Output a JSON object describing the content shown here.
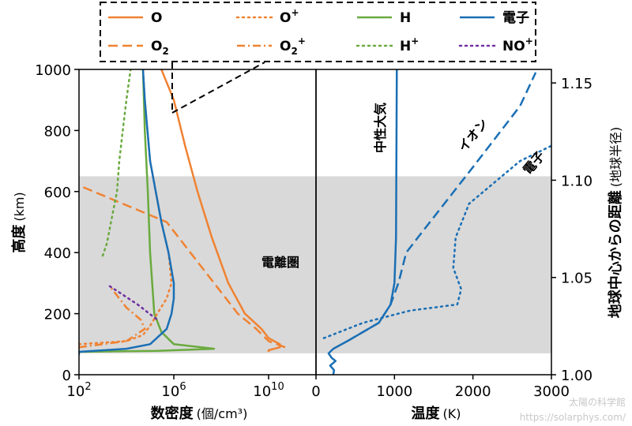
{
  "chart_data": [
    {
      "type": "line",
      "panel": "left",
      "xlabel": "数密度",
      "xlabel_unit": "(個/cm³)",
      "ylabel": "高度",
      "ylabel_unit": "(km)",
      "x_scale": "log",
      "xlim": [
        100,
        1000000000000
      ],
      "ylim": [
        0,
        1000
      ],
      "x_ticks": [
        {
          "value": 100,
          "base": "10",
          "exp": "2"
        },
        {
          "value": 1000000,
          "base": "10",
          "exp": "6"
        },
        {
          "value": 10000000000,
          "base": "10",
          "exp": "10"
        }
      ],
      "y_ticks": [
        0,
        200,
        400,
        600,
        800,
        1000
      ],
      "region_label": "電離圏",
      "series": [
        {
          "name": "O",
          "color": "#f08232",
          "dash": "solid",
          "points": [
            [
              10000000000.0,
              75
            ],
            [
              10000000000.0,
              80
            ],
            [
              30000000000.0,
              90
            ],
            [
              30000000000.0,
              100
            ],
            [
              10000000000.0,
              120
            ],
            [
              5000000000.0,
              150
            ],
            [
              1000000000.0,
              200
            ],
            [
              200000000.0,
              300
            ],
            [
              40000000.0,
              450
            ],
            [
              10000000.0,
              600
            ],
            [
              3000000.0,
              750
            ],
            [
              1000000.0,
              900
            ],
            [
              300000.0,
              1000
            ]
          ]
        },
        {
          "name": "O₂",
          "color": "#f08232",
          "dash": "dashed",
          "points": [
            [
              50000000000.0,
              90
            ],
            [
              10000000000.0,
              110
            ],
            [
              3000000000.0,
              150
            ],
            [
              500000000.0,
              200
            ],
            [
              50000000.0,
              300
            ],
            [
              5000000.0,
              400
            ],
            [
              500000.0,
              500
            ],
            [
              100,
              620
            ]
          ]
        },
        {
          "name": "H",
          "color": "#6aaa3e",
          "dash": "solid",
          "points": [
            [
              100,
              75
            ],
            [
              200000.0,
              78
            ],
            [
              50000000.0,
              85
            ],
            [
              1000000.0,
              100
            ],
            [
              300000.0,
              140
            ],
            [
              150000.0,
              200
            ],
            [
              100000.0,
              400
            ],
            [
              80000.0,
              600
            ],
            [
              60000.0,
              800
            ],
            [
              50000.0,
              1000
            ]
          ]
        },
        {
          "name": "O⁺",
          "color": "#f08232",
          "dash": "dotted",
          "points": [
            [
              100,
              100
            ],
            [
              10000.0,
              110
            ],
            [
              50000.0,
              130
            ],
            [
              100000.0,
              160
            ],
            [
              200000.0,
              200
            ],
            [
              500000.0,
              250
            ],
            [
              800000.0,
              300
            ],
            [
              600000.0,
              400
            ],
            [
              300000.0,
              500
            ],
            [
              100000.0,
              700
            ],
            [
              60000.0,
              900
            ],
            [
              50000.0,
              1000
            ]
          ]
        },
        {
          "name": "O₂⁺",
          "color": "#f08232",
          "dash": "dashdot",
          "points": [
            [
              100,
              90
            ],
            [
              10000.0,
              110
            ],
            [
              60000.0,
              150
            ],
            [
              40000.0,
              180
            ],
            [
              10000.0,
              220
            ],
            [
              2000.0,
              290
            ]
          ]
        },
        {
          "name": "H⁺",
          "color": "#6aaa3e",
          "dash": "dotted",
          "points": [
            [
              1000.0,
              390
            ],
            [
              1500.0,
              430
            ],
            [
              2000.0,
              480
            ],
            [
              3000.0,
              550
            ],
            [
              4000.0,
              600
            ],
            [
              5000.0,
              700
            ],
            [
              7000.0,
              800
            ],
            [
              10000.0,
              900
            ],
            [
              15000.0,
              1000
            ]
          ]
        },
        {
          "name": "NO⁺",
          "color": "#7030a0",
          "dash": "dotted",
          "points": [
            [
              2000.0,
              290
            ],
            [
              30000.0,
              230
            ],
            [
              200000.0,
              180
            ]
          ]
        },
        {
          "name": "電子",
          "color": "#1a6fb5",
          "dash": "solid",
          "points": [
            [
              100,
              65
            ],
            [
              100,
              75
            ],
            [
              10000.0,
              85
            ],
            [
              100000.0,
              100
            ],
            [
              500000.0,
              150
            ],
            [
              800000.0,
              200
            ],
            [
              1000000.0,
              250
            ],
            [
              1000000.0,
              300
            ],
            [
              600000.0,
              400
            ],
            [
              300000.0,
              500
            ],
            [
              100000.0,
              700
            ],
            [
              60000.0,
              900
            ],
            [
              50000.0,
              1000
            ]
          ]
        }
      ]
    },
    {
      "type": "line",
      "panel": "right",
      "xlabel": "温度",
      "xlabel_unit": "(K)",
      "right_ylabel": "地球中心からの距離",
      "right_ylabel_unit": "(地球半径)",
      "xlim": [
        0,
        3000
      ],
      "ylim": [
        0,
        1000
      ],
      "x_ticks": [
        0,
        1000,
        2000,
        3000
      ],
      "right_ticks": [
        1.0,
        1.05,
        1.1,
        1.15
      ],
      "series": [
        {
          "name": "中性大気",
          "color": "#1a6fb5",
          "dash": "solid",
          "points": [
            [
              220,
              0
            ],
            [
              230,
              15
            ],
            [
              180,
              30
            ],
            [
              250,
              45
            ],
            [
              200,
              55
            ],
            [
              160,
              70
            ],
            [
              220,
              85
            ],
            [
              400,
              110
            ],
            [
              600,
              140
            ],
            [
              800,
              170
            ],
            [
              950,
              230
            ],
            [
              1000,
              300
            ],
            [
              1020,
              450
            ],
            [
              1030,
              1000
            ]
          ]
        },
        {
          "name": "イオン",
          "color": "#1a6fb5",
          "dash": "dashed",
          "points": [
            [
              400,
              110
            ],
            [
              800,
              170
            ],
            [
              950,
              230
            ],
            [
              1050,
              300
            ],
            [
              1150,
              400
            ],
            [
              1300,
              450
            ],
            [
              2000,
              680
            ],
            [
              2600,
              880
            ],
            [
              2800,
              990
            ]
          ]
        },
        {
          "name": "電子",
          "color": "#1a6fb5",
          "dash": "dotted",
          "points": [
            [
              100,
              120
            ],
            [
              600,
              170
            ],
            [
              1200,
              210
            ],
            [
              1800,
              230
            ],
            [
              1850,
              280
            ],
            [
              1750,
              350
            ],
            [
              1780,
              450
            ],
            [
              1950,
              560
            ],
            [
              2600,
              700
            ],
            [
              3000,
              750
            ]
          ]
        }
      ]
    }
  ],
  "legend": [
    {
      "label": "O",
      "color": "#f08232",
      "dash": "solid"
    },
    {
      "label": "O",
      "sub": "2",
      "color": "#f08232",
      "dash": "dashed"
    },
    {
      "label": "O",
      "sup": "+",
      "color": "#f08232",
      "dash": "dotted"
    },
    {
      "label": "O",
      "sub": "2",
      "sup": "+",
      "color": "#f08232",
      "dash": "dashdot"
    },
    {
      "label": "H",
      "color": "#6aaa3e",
      "dash": "solid"
    },
    {
      "label": "H",
      "sup": "+",
      "color": "#6aaa3e",
      "dash": "dotted"
    },
    {
      "label": "電子",
      "color": "#1a6fb5",
      "dash": "solid"
    },
    {
      "label": "NO",
      "sup": "+",
      "color": "#7030a0",
      "dash": "dotted"
    }
  ],
  "watermark": {
    "title": "太陽の科学館",
    "url": "https://solarphys.com/"
  }
}
